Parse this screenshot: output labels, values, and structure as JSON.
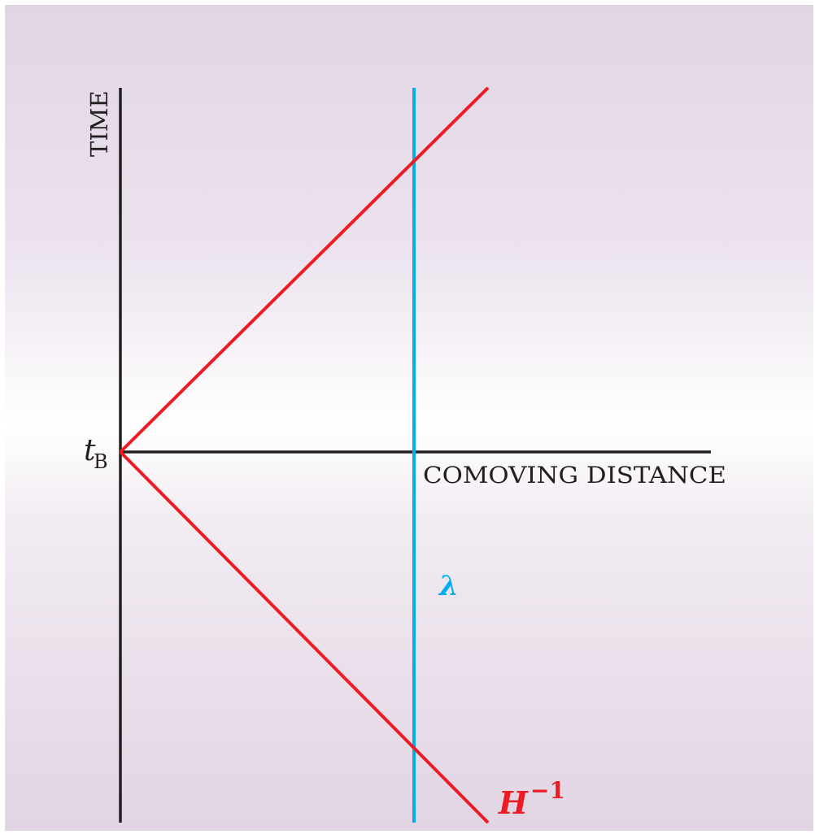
{
  "diagram": {
    "axis_labels": {
      "time": "TIME",
      "distance": "COMOVING DISTANCE"
    },
    "origin_label": {
      "main": "t",
      "subscript": "B"
    },
    "wavelength_label": "λ",
    "hubble_label": {
      "main": "H",
      "superscript": "−1"
    },
    "colors": {
      "axes": "#231f20",
      "hubble_radius": "#ed1c24",
      "wavelength": "#00aeef",
      "background": "#e1d5e4"
    }
  }
}
